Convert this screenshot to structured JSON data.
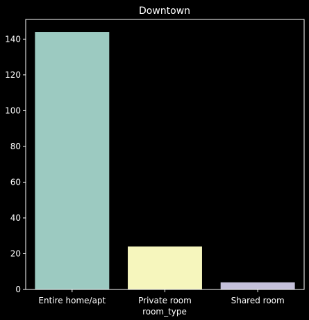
{
  "chart_data": {
    "type": "bar",
    "title": "Downtown",
    "xlabel": "room_type",
    "ylabel": "",
    "categories": [
      "Entire home/apt",
      "Private room",
      "Shared room"
    ],
    "values": [
      144,
      24,
      4
    ],
    "ylim": [
      0,
      151
    ],
    "yticks": [
      0,
      20,
      40,
      60,
      80,
      100,
      120,
      140
    ],
    "bar_colors": [
      "#9ccac1",
      "#f6f6bd",
      "#c4c0da"
    ],
    "background": "#000000",
    "text_color": "#ffffff",
    "grid": false,
    "legend": "none"
  }
}
